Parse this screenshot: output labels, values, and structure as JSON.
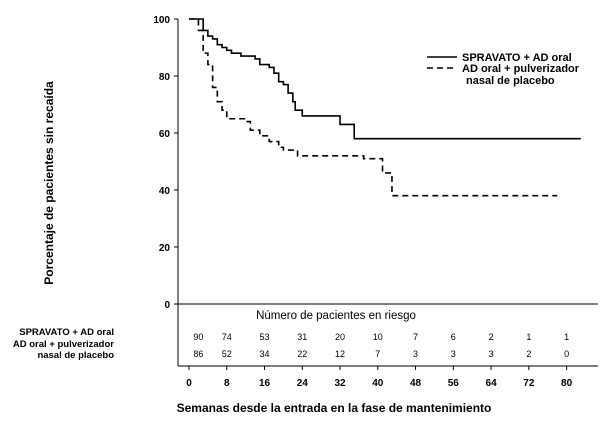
{
  "chart_data": {
    "type": "line",
    "step": true,
    "ylabel": "Porcentaje de pacientes sin recaída",
    "xlabel": "Semanas desde la entrada en la fase de mantenimiento",
    "xlim": [
      0,
      84
    ],
    "ylim": [
      0,
      100
    ],
    "x_ticks": [
      0,
      8,
      16,
      24,
      32,
      40,
      48,
      56,
      64,
      72,
      80
    ],
    "y_ticks": [
      0,
      20,
      40,
      60,
      80,
      100
    ],
    "grid": false,
    "legend_position": "top-right",
    "series": [
      {
        "name": "SPRAVATO + AD oral",
        "style": "solid",
        "points": [
          [
            0,
            100
          ],
          [
            2,
            100
          ],
          [
            3,
            96
          ],
          [
            4,
            94
          ],
          [
            5,
            93
          ],
          [
            6,
            91
          ],
          [
            7,
            90
          ],
          [
            8,
            89
          ],
          [
            9,
            88
          ],
          [
            11,
            87
          ],
          [
            14,
            86
          ],
          [
            15,
            84
          ],
          [
            17,
            83
          ],
          [
            18,
            81
          ],
          [
            19,
            78
          ],
          [
            20,
            77
          ],
          [
            21,
            74
          ],
          [
            22,
            71
          ],
          [
            22.5,
            68
          ],
          [
            24,
            66
          ],
          [
            32,
            63
          ],
          [
            35,
            58
          ],
          [
            83,
            58
          ]
        ]
      },
      {
        "name": "AD oral + pulverizador nasal de placebo",
        "style": "dashed",
        "points": [
          [
            0,
            100
          ],
          [
            2,
            96
          ],
          [
            3,
            88
          ],
          [
            4,
            84
          ],
          [
            5,
            76
          ],
          [
            6,
            71
          ],
          [
            7,
            68
          ],
          [
            8,
            65
          ],
          [
            12,
            64
          ],
          [
            13,
            61
          ],
          [
            15,
            59
          ],
          [
            17,
            57
          ],
          [
            19,
            55
          ],
          [
            20,
            54
          ],
          [
            23,
            52
          ],
          [
            33,
            52
          ],
          [
            37,
            51
          ],
          [
            41,
            46
          ],
          [
            43,
            38
          ],
          [
            78,
            38
          ]
        ]
      }
    ],
    "risk_table": {
      "title": "Número de pacientes en riesgo",
      "x": [
        2,
        8,
        16,
        24,
        32,
        40,
        48,
        56,
        64,
        72,
        80
      ],
      "rows": [
        {
          "label_lines": [
            "SPRAVATO + AD oral"
          ],
          "values": [
            90,
            74,
            53,
            31,
            20,
            10,
            7,
            6,
            2,
            1,
            1
          ]
        },
        {
          "label_lines": [
            "AD oral + pulverizador",
            "nasal de placebo"
          ],
          "values": [
            86,
            52,
            34,
            22,
            12,
            7,
            3,
            3,
            3,
            2,
            0
          ]
        }
      ]
    }
  }
}
